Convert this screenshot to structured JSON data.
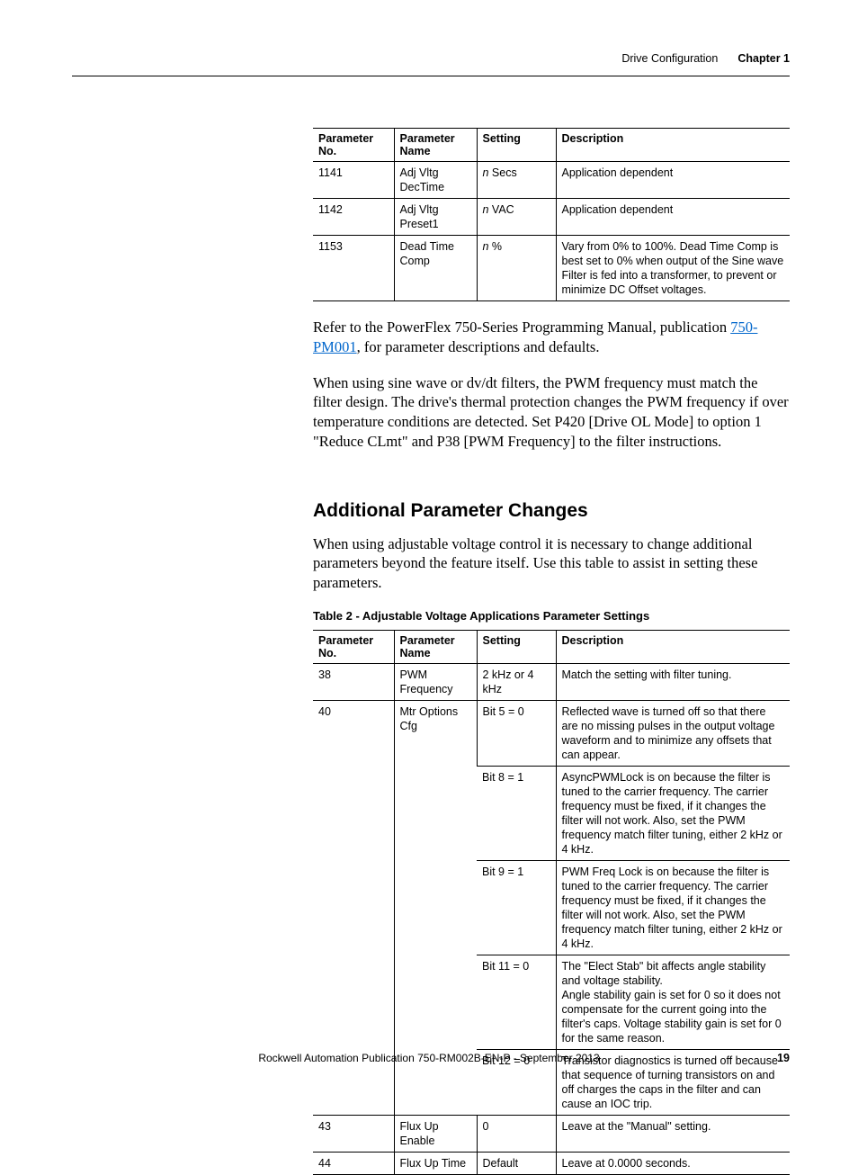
{
  "header": {
    "title": "Drive Configuration",
    "chapter": "Chapter 1"
  },
  "table1": {
    "columns": [
      "Parameter No.",
      "Parameter Name",
      "Setting",
      "Description"
    ],
    "rows": [
      {
        "no": "1141",
        "name": "Adj Vltg DecTime",
        "setting_prefix": "n",
        "setting_suffix": " Secs",
        "desc": "Application dependent"
      },
      {
        "no": "1142",
        "name": "Adj Vltg Preset1",
        "setting_prefix": "n",
        "setting_suffix": " VAC",
        "desc": "Application dependent"
      },
      {
        "no": "1153",
        "name": "Dead Time Comp",
        "setting_prefix": "n",
        "setting_suffix": " %",
        "desc": "Vary from 0% to 100%. Dead Time Comp is best set to 0% when output of the Sine wave Filter is fed into a transformer, to prevent or minimize DC Offset voltages."
      }
    ]
  },
  "para1": {
    "pre": "Refer to the PowerFlex 750-Series Programming Manual, publication ",
    "link": "750-PM001",
    "post": ", for parameter descriptions and defaults."
  },
  "para2": "When using sine wave or dv/dt filters, the PWM frequency must match the filter design. The drive's thermal protection changes the PWM frequency if over temperature conditions are detected. Set P420 [Drive OL Mode] to option 1 \"Reduce CLmt\" and P38 [PWM Frequency] to the filter instructions.",
  "heading2": "Additional Parameter Changes",
  "para3": "When using adjustable voltage control it is necessary to change additional parameters beyond the feature itself. Use this table to assist in setting these parameters.",
  "table2_caption": "Table 2 - Adjustable Voltage Applications Parameter Settings",
  "table2": {
    "columns": [
      "Parameter No.",
      "Parameter Name",
      "Setting",
      "Description"
    ],
    "rows": [
      {
        "no": "38",
        "name": "PWM Frequency",
        "setting": "2 kHz or 4 kHz",
        "desc": "Match the setting with filter tuning."
      },
      {
        "no": "40",
        "name": "Mtr Options Cfg",
        "span": 5,
        "cells": [
          {
            "setting": "Bit 5 = 0",
            "desc": "Reflected wave is turned off so that there are no missing pulses in the output voltage waveform and to minimize any offsets that can appear."
          },
          {
            "setting": "Bit 8 = 1",
            "desc": "AsyncPWMLock is on because the filter is tuned to the carrier frequency. The carrier frequency must be fixed, if it changes the filter will not work. Also, set the PWM frequency match filter tuning, either 2 kHz or 4 kHz."
          },
          {
            "setting": "Bit 9 = 1",
            "desc": "PWM Freq Lock is on because the filter is tuned to the carrier frequency. The carrier frequency must be fixed, if it changes the filter will not work. Also, set the PWM frequency match filter tuning, either 2 kHz or 4 kHz."
          },
          {
            "setting": "Bit 11 = 0",
            "desc": "The \"Elect Stab\" bit affects angle stability and voltage stability.\nAngle stability gain is set for 0 so it does not compensate for the current going into the filter's caps. Voltage stability gain is set for 0 for the same reason."
          },
          {
            "setting": "Bit 12 = 0",
            "desc": "Transistor diagnostics is turned off because that sequence of turning transistors on and off charges the caps in the filter and can cause an IOC trip."
          }
        ]
      },
      {
        "no": "43",
        "name": "Flux Up Enable",
        "setting": "0",
        "desc": "Leave at the \"Manual\" setting."
      },
      {
        "no": "44",
        "name": "Flux Up Time",
        "setting": "Default",
        "desc": "Leave at 0.0000 seconds."
      }
    ]
  },
  "footer": {
    "pub": "Rockwell Automation Publication 750-RM002B-EN-P - September 2013",
    "page": "19"
  }
}
